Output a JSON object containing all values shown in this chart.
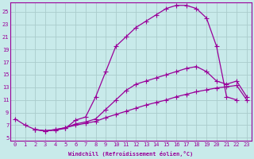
{
  "xlabel": "Windchill (Refroidissement éolien,°C)",
  "bg_color": "#c8eaea",
  "line_color": "#990099",
  "grid_color": "#aacccc",
  "x_ticks": [
    0,
    1,
    2,
    3,
    4,
    5,
    6,
    7,
    8,
    9,
    10,
    11,
    12,
    13,
    14,
    15,
    16,
    17,
    18,
    19,
    20,
    21,
    22,
    23
  ],
  "y_ticks": [
    5,
    7,
    9,
    11,
    13,
    15,
    17,
    19,
    21,
    23,
    25
  ],
  "xlim": [
    -0.5,
    23.5
  ],
  "ylim": [
    4.5,
    26.5
  ],
  "curve1_x": [
    0,
    1,
    2,
    3,
    4,
    5,
    6,
    7,
    8,
    9,
    10,
    11,
    12,
    13,
    14,
    15,
    16,
    17,
    18,
    19,
    20,
    21,
    22
  ],
  "curve1_y": [
    8.0,
    7.0,
    6.3,
    6.1,
    6.2,
    6.5,
    7.8,
    8.3,
    11.5,
    15.5,
    19.5,
    21.0,
    22.5,
    23.5,
    24.5,
    25.5,
    26.0,
    26.0,
    25.5,
    24.0,
    19.5,
    11.5,
    11.0
  ],
  "curve2_x": [
    2,
    3,
    4,
    5,
    6,
    7,
    8,
    9,
    10,
    11,
    12,
    13,
    14,
    15,
    16,
    17,
    18,
    19,
    20,
    21,
    22,
    23
  ],
  "curve2_y": [
    6.3,
    6.1,
    6.3,
    6.6,
    7.2,
    7.5,
    8.0,
    9.5,
    11.0,
    12.5,
    13.5,
    14.0,
    14.5,
    15.0,
    15.5,
    16.0,
    16.3,
    15.5,
    14.0,
    13.5,
    14.0,
    11.5
  ],
  "curve3_x": [
    2,
    3,
    4,
    5,
    6,
    7,
    8,
    9,
    10,
    11,
    12,
    13,
    14,
    15,
    16,
    17,
    18,
    19,
    20,
    21,
    22,
    23
  ],
  "curve3_y": [
    6.3,
    6.1,
    6.3,
    6.6,
    7.0,
    7.3,
    7.6,
    8.2,
    8.7,
    9.2,
    9.7,
    10.2,
    10.6,
    11.0,
    11.5,
    11.9,
    12.3,
    12.6,
    12.9,
    13.1,
    13.3,
    11.0
  ],
  "marker": "+",
  "markersize": 4,
  "linewidth": 0.9
}
